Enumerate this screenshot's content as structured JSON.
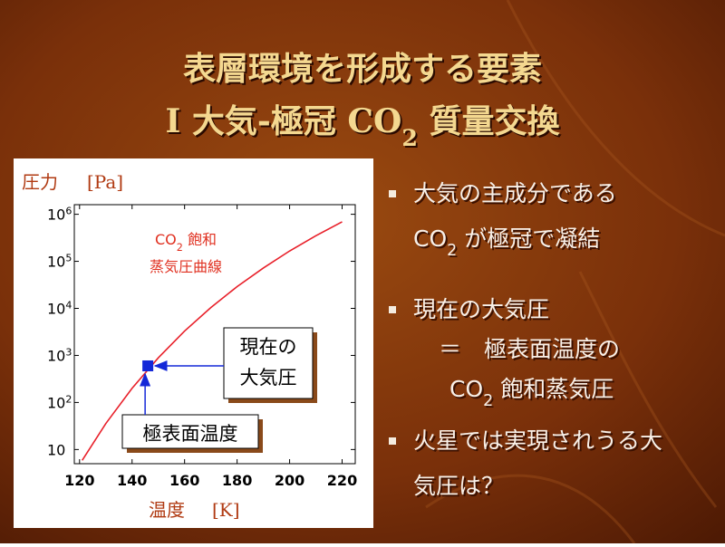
{
  "title": {
    "lines": [
      [
        "表層環境を形成する要素"
      ],
      [
        "I 大気-極冠 CO",
        "2",
        " 質量交換"
      ]
    ]
  },
  "chart_data": {
    "type": "line",
    "y_label": "圧力",
    "y_unit": "[Pa]",
    "x_label": "温度",
    "x_unit": "[K]",
    "x": [
      121,
      130,
      140,
      150,
      160,
      170,
      180,
      190,
      200,
      210,
      220
    ],
    "series": [
      {
        "color": "#e8202a",
        "values": [
          5.9,
          35.7,
          200,
          890,
          3300,
          10400,
          29000,
          72000,
          166000,
          350000,
          690000
        ]
      }
    ],
    "curve_label": [
      [
        "CO",
        "2",
        " 飽和"
      ],
      [
        "蒸気圧曲線"
      ]
    ],
    "point": {
      "x": 146,
      "y": 600,
      "color": "#1428d8"
    },
    "point_labels": [
      {
        "lines": [
          "現在の",
          "大気圧"
        ]
      },
      {
        "lines": [
          "極表面温度"
        ]
      }
    ],
    "xlim": [
      118,
      225
    ],
    "xticks": [
      120,
      140,
      160,
      180,
      200,
      220
    ],
    "ylim": [
      5,
      1600000
    ],
    "log_y": true,
    "yticks": [
      10,
      {
        "value": 100,
        "label": "10",
        "sup": "2"
      },
      {
        "value": 1000,
        "label": "10",
        "sup": "3"
      },
      {
        "value": 10000,
        "label": "10",
        "sup": "4"
      },
      {
        "value": 100000,
        "label": "10",
        "sup": "5"
      },
      {
        "value": 1000000,
        "label": "10",
        "sup": "6"
      }
    ]
  },
  "bullets": [
    [
      [
        "大気の主成分である"
      ],
      [
        "CO",
        "2",
        " が極冠で凝結"
      ]
    ],
    [
      [
        "現在の大気圧"
      ],
      [
        "＝　極表面温度の"
      ],
      [
        "CO",
        "2",
        " 飽和蒸気圧"
      ]
    ],
    [
      [
        "火星では実現されうる大"
      ],
      [
        "気圧は？"
      ]
    ]
  ]
}
